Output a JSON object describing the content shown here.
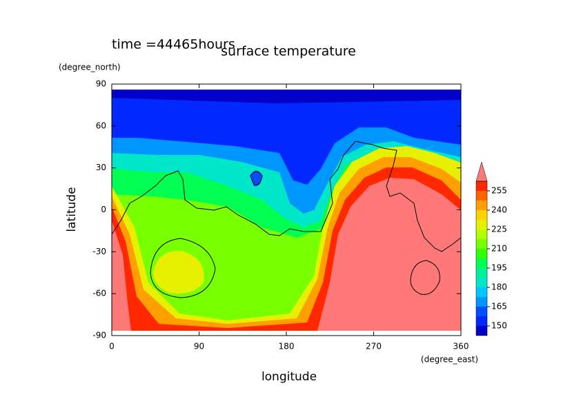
{
  "chart_data": {
    "type": "contour",
    "title": "surface temperature",
    "subtitle": "time =44465hours",
    "x_label": "longitude",
    "x_units": "(degree_east)",
    "y_label": "latitude",
    "y_units": "(degree_north)",
    "xlim": [
      0,
      360
    ],
    "xticks": [
      0,
      90,
      180,
      270,
      360
    ],
    "ylim": [
      -90,
      90
    ],
    "yticks": [
      -90,
      -60,
      -30,
      0,
      30,
      60,
      90
    ],
    "colorbar": {
      "levels": [
        142.5,
        150,
        157.5,
        165,
        172.5,
        180,
        187.5,
        195,
        202.5,
        210,
        217.5,
        225,
        232.5,
        240,
        247.5,
        255,
        262.5
      ],
      "colors": [
        "#0000c8",
        "#0028ff",
        "#0050ff",
        "#0096ff",
        "#00c8ff",
        "#00e6c8",
        "#00f096",
        "#00ff50",
        "#32ff00",
        "#78ff00",
        "#b4ff00",
        "#e6f000",
        "#ffd200",
        "#ffa000",
        "#ff6400",
        "#ff2800"
      ],
      "over_color": "#ff7878",
      "ticks": [
        150,
        165,
        180,
        195,
        210,
        225,
        240,
        255
      ]
    }
  }
}
